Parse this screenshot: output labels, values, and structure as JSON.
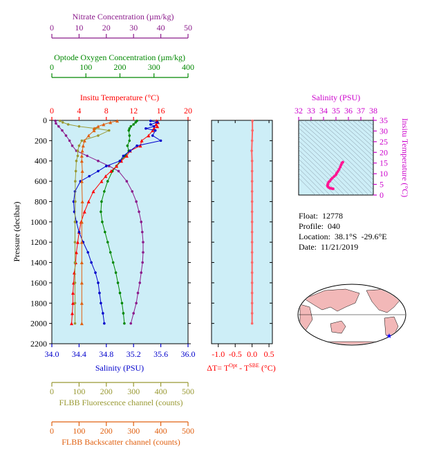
{
  "colors": {
    "nitrate": "#8b1a8b",
    "oxygen": "#008800",
    "temperature": "#ff0000",
    "salinity": "#0000cc",
    "fluorescence": "#999933",
    "backscatter": "#e06010",
    "panel_bg": "#cdeef7",
    "dt": "#ff6666",
    "ts": "#ff1493",
    "ts_axis": "#cc00cc"
  },
  "info": {
    "float_label": "Float:",
    "float_value": "12778",
    "profile_label": "Profile:",
    "profile_value": "040",
    "location_label": "Location:",
    "location_value": "38.1°S  -29.6°E",
    "date_label": "Date:",
    "date_value": "11/21/2019"
  },
  "map": {
    "marker": "float-position-star"
  },
  "chart_data": [
    {
      "type": "line",
      "panel": "main-profile",
      "y_axis": {
        "label": "Pressure (decibar)",
        "ticks": [
          0,
          200,
          400,
          600,
          800,
          1000,
          1200,
          1400,
          1600,
          1800,
          2000,
          2200
        ],
        "lim": [
          0,
          2200
        ],
        "inverted": true
      },
      "axes": {
        "nitrate": {
          "label": "Nitrate Concentration (µm/kg)",
          "ticks": [
            0,
            10,
            20,
            30,
            40,
            50
          ],
          "lim": [
            0,
            50
          ]
        },
        "oxygen": {
          "label": "Optode Oxygen Concentration (µm/kg)",
          "ticks": [
            0,
            100,
            200,
            300,
            400
          ],
          "lim": [
            0,
            400
          ]
        },
        "temperature": {
          "label": "Insitu Temperature (°C)",
          "ticks": [
            0,
            4,
            8,
            12,
            16,
            20
          ],
          "lim": [
            0,
            20
          ]
        },
        "salinity": {
          "label": "Salinity (PSU)",
          "ticks": [
            "34.0",
            "34.4",
            "34.8",
            "35.2",
            "35.6",
            "36.0"
          ],
          "lim": [
            34,
            36
          ]
        },
        "fluorescence": {
          "label": "FLBB Fluorescence channel (counts)",
          "ticks": [
            0,
            100,
            200,
            300,
            400,
            500
          ],
          "lim": [
            0,
            500
          ]
        },
        "backscatter": {
          "label": "FLBB Backscatter channel (counts)",
          "ticks": [
            0,
            100,
            200,
            300,
            400,
            500
          ],
          "lim": [
            0,
            500
          ]
        }
      },
      "series": [
        {
          "name": "Nitrate Concentration",
          "axis": "nitrate",
          "p": [
            5,
            30,
            60,
            100,
            150,
            200,
            250,
            300,
            350,
            400,
            450,
            500,
            600,
            700,
            800,
            900,
            1000,
            1100,
            1200,
            1300,
            1400,
            1500,
            1600,
            1700,
            1800,
            1900,
            2000
          ],
          "v": [
            1.3,
            1.5,
            2.5,
            3.8,
            5.2,
            6.5,
            7.5,
            9,
            13,
            17,
            21,
            24.5,
            27.5,
            29.5,
            31,
            32,
            32.8,
            33.2,
            33.5,
            33.5,
            33.3,
            32.8,
            32.3,
            31.6,
            31,
            30,
            29
          ]
        },
        {
          "name": "Oxygen Concentration",
          "axis": "oxygen",
          "p": [
            5,
            20,
            40,
            60,
            80,
            100,
            150,
            200,
            250,
            300,
            350,
            400,
            450,
            500,
            600,
            700,
            800,
            900,
            1000,
            1100,
            1200,
            1300,
            1400,
            1500,
            1600,
            1700,
            1800,
            1900,
            2000
          ],
          "v": [
            250,
            246,
            240,
            232,
            228,
            226,
            228,
            228,
            222,
            226,
            216,
            200,
            190,
            178,
            164,
            154,
            146,
            144,
            148,
            156,
            164,
            172,
            180,
            188,
            194,
            200,
            206,
            210,
            213
          ]
        },
        {
          "name": "Insitu Temperature",
          "axis": "temperature",
          "p": [
            5,
            20,
            40,
            60,
            80,
            100,
            150,
            200,
            250,
            300,
            350,
            400,
            450,
            500,
            550,
            600,
            700,
            800,
            900,
            1000,
            1100,
            1200,
            1300,
            1400,
            1500,
            1600,
            1700,
            1800,
            1900,
            2000
          ],
          "v": [
            15.4,
            15.6,
            15.3,
            15.5,
            15.0,
            14.8,
            14.2,
            13.2,
            13.0,
            11.5,
            11.0,
            10.2,
            9.5,
            8.7,
            7.9,
            7.3,
            6.1,
            5.4,
            4.8,
            4.3,
            4.0,
            3.8,
            3.6,
            3.5,
            3.3,
            3.2,
            3.1,
            3.1,
            3.0,
            2.9
          ]
        },
        {
          "name": "Salinity",
          "axis": "salinity",
          "p": [
            5,
            20,
            40,
            60,
            80,
            100,
            150,
            200,
            250,
            300,
            350,
            400,
            450,
            500,
            550,
            600,
            700,
            800,
            900,
            1000,
            1100,
            1200,
            1300,
            1400,
            1500,
            1600,
            1700,
            1800,
            1900,
            2000
          ],
          "v": [
            35.45,
            35.55,
            35.45,
            35.5,
            35.38,
            35.52,
            35.48,
            35.6,
            35.25,
            35.15,
            35.05,
            35.0,
            34.8,
            34.68,
            34.55,
            34.42,
            34.34,
            34.32,
            34.33,
            34.36,
            34.4,
            34.46,
            34.53,
            34.58,
            34.64,
            34.68,
            34.7,
            34.72,
            34.75,
            34.77
          ]
        },
        {
          "name": "FLBB Fluorescence",
          "axis": "fluorescence",
          "p": [
            5,
            20,
            40,
            60,
            80,
            100,
            150,
            200,
            250,
            300,
            350,
            400,
            500,
            600,
            800,
            1000,
            1200,
            1400,
            1600,
            1800,
            2000
          ],
          "v": [
            30,
            40,
            60,
            100,
            160,
            210,
            170,
            110,
            100,
            95,
            95,
            90,
            88,
            86,
            86,
            85,
            85,
            85,
            85,
            85,
            85
          ]
        },
        {
          "name": "FLBB Backscatter",
          "axis": "backscatter",
          "p": [
            5,
            20,
            40,
            60,
            80,
            100,
            150,
            200,
            250,
            300,
            350,
            400,
            500,
            600,
            800,
            1000,
            1200,
            1400,
            1600,
            1800,
            2000
          ],
          "v": [
            240,
            215,
            190,
            170,
            155,
            155,
            135,
            120,
            115,
            112,
            110,
            110,
            112,
            110,
            112,
            110,
            110,
            110,
            110,
            110,
            110
          ]
        }
      ]
    },
    {
      "type": "line",
      "panel": "delta-t",
      "x_axis": {
        "label": "ΔT= T Opt - T SBE (°C)",
        "ticks": [
          "-1.0",
          "-0.5",
          "0.0",
          "0.5"
        ],
        "lim": [
          -1.2,
          0.6
        ]
      },
      "series": [
        {
          "name": "ΔT",
          "p": [
            5,
            100,
            200,
            300,
            400,
            500,
            600,
            700,
            800,
            900,
            1000,
            1100,
            1200,
            1300,
            1400,
            1500,
            1600,
            1700,
            1800,
            1900,
            2000
          ],
          "v": [
            0.01,
            0.01,
            0.0,
            -0.01,
            0.0,
            0.0,
            0.0,
            0.0,
            0.0,
            0.0,
            0.0,
            0.0,
            0.0,
            0.0,
            0.0,
            0.0,
            0.0,
            0.0,
            0.0,
            0.0,
            0.0
          ]
        }
      ]
    },
    {
      "type": "scatter",
      "panel": "ts-diagram",
      "x_axis": {
        "label": "Salinity (PSU)",
        "ticks": [
          32,
          33,
          34,
          35,
          36,
          37,
          38
        ],
        "lim": [
          32,
          38
        ]
      },
      "y_axis": {
        "label": "Insitu Temperature (°C)",
        "ticks": [
          0,
          5,
          10,
          15,
          20,
          25,
          30,
          35
        ],
        "lim": [
          0,
          35
        ]
      },
      "series": [
        {
          "name": "T-S",
          "s": [
            35.55,
            35.48,
            35.42,
            35.35,
            35.25,
            35.15,
            35.05,
            35.0,
            34.85,
            34.7,
            34.6,
            34.5,
            34.42,
            34.36,
            34.33,
            34.32,
            34.34,
            34.4,
            34.5,
            34.6,
            34.7,
            34.77
          ],
          "t": [
            15.4,
            15.0,
            14.2,
            13.2,
            12.0,
            11.0,
            10.2,
            9.5,
            8.7,
            7.9,
            7.3,
            6.5,
            6.1,
            5.4,
            4.8,
            4.3,
            4.0,
            3.6,
            3.3,
            3.1,
            3.0,
            2.9
          ]
        }
      ]
    }
  ]
}
